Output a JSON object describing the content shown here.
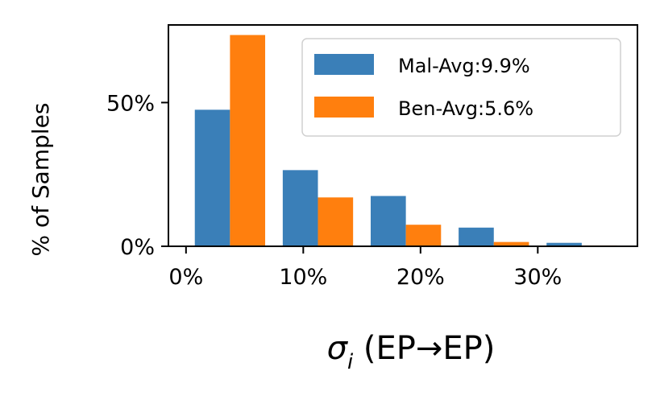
{
  "chart_data": {
    "type": "bar",
    "xlabel": "σi (EP→EP)",
    "xlabel_parts": {
      "symbol": "σ",
      "subscript": "i",
      "rest": " (EP→EP)"
    },
    "ylabel": "% of Samples",
    "xlim": [
      -1.5,
      38.5
    ],
    "ylim": [
      0,
      77
    ],
    "xticks": [
      0,
      10,
      20,
      30
    ],
    "xtick_labels": [
      "0%",
      "10%",
      "20%",
      "30%"
    ],
    "yticks": [
      0,
      50
    ],
    "ytick_labels": [
      "0%",
      "50%"
    ],
    "bin_width": 7.5,
    "bar_width": 3,
    "bin_starts": [
      0.75,
      8.25,
      15.75,
      23.25,
      30.75
    ],
    "series": [
      {
        "name": "Mal-Avg:9.9%",
        "color": "#3a7fb8",
        "values": [
          47.5,
          26.5,
          17.5,
          6.5,
          1.2
        ]
      },
      {
        "name": "Ben-Avg:5.6%",
        "color": "#ff7f0e",
        "values": [
          73.5,
          17,
          7.5,
          1.5,
          0.3
        ]
      }
    ],
    "legend_position": "top-right",
    "grid": false
  }
}
